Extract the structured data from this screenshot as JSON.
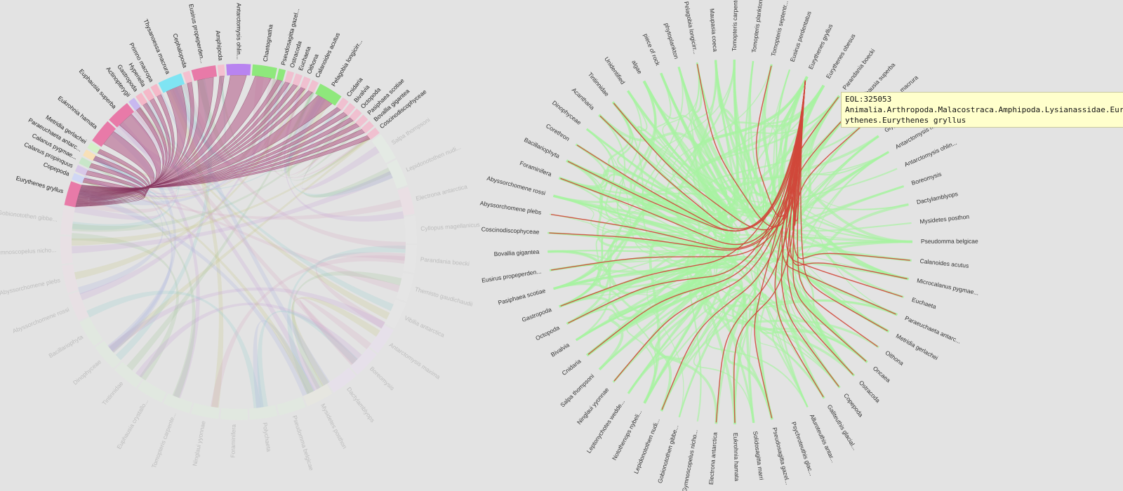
{
  "chord": {
    "highlighted_group": "Eurythenes gryllus",
    "colors": {
      "pink": "#e87aa8",
      "cyan": "#7fe4f3",
      "purple": "#b884f0",
      "green": "#8ee87c",
      "ribbon": "#b25a86"
    },
    "groups_highlight": [
      {
        "label": "Eurythenes gryllus",
        "color": "#e87aa8"
      },
      {
        "label": "Copepoda",
        "color": "#d0d7f5"
      },
      {
        "label": "Calanus propinquus",
        "color": "#d8c8e8"
      },
      {
        "label": "Calanus pygmae...",
        "color": "#c8e6c9"
      },
      {
        "label": "Paraeuchaeta antarc...",
        "color": "#f8e0b8"
      },
      {
        "label": "Metridia gerlachei",
        "color": "#d4f0c8"
      },
      {
        "label": "Eukrohnia hamata",
        "color": "#e87aa8"
      },
      {
        "label": "Euphausia superba",
        "color": "#e87aa8"
      },
      {
        "label": "Actinopterygii",
        "color": "#c8b8f0"
      },
      {
        "label": "Gastropoda",
        "color": "#f4b8c8"
      },
      {
        "label": "Hyperiella",
        "color": "#f4b8c8"
      },
      {
        "label": "Primno macropa",
        "color": "#f4b8c8"
      },
      {
        "label": "Thysanoessa macrura",
        "color": "#7fe4f3"
      },
      {
        "label": "Cephalopoda",
        "color": "#f4c0d0"
      },
      {
        "label": "Eusirus propeperden...",
        "color": "#e87aa8"
      },
      {
        "label": "Amphipoda",
        "color": "#f4c0d0"
      },
      {
        "label": "Antarctomysis ohlin...",
        "color": "#b884f0"
      },
      {
        "label": "Chaetognatha",
        "color": "#8ee87c"
      },
      {
        "label": "Pseudosagitta gazel...",
        "color": "#8ee87c"
      },
      {
        "label": "Ostracoda",
        "color": "#f0c0d0"
      },
      {
        "label": "Euchaeta",
        "color": "#f0c0d0"
      },
      {
        "label": "Oithona",
        "color": "#f0c0d0"
      },
      {
        "label": "Calanoides acutus",
        "color": "#f0c0d0"
      },
      {
        "label": "Pelagobia longicirr...",
        "color": "#8ee87c"
      },
      {
        "label": "Cnidaria",
        "color": "#f0c0d0"
      },
      {
        "label": "Bivalvia",
        "color": "#f0c0d0"
      },
      {
        "label": "Octopoda",
        "color": "#f0c0d0"
      },
      {
        "label": "Pasiphaea scotiae",
        "color": "#f0c0d0"
      },
      {
        "label": "Bovallia gigantea",
        "color": "#f0c0d0"
      },
      {
        "label": "Coscinodiscophyceae",
        "color": "#f0c0d0"
      }
    ],
    "groups_dim": [
      {
        "label": "Salpa thompsoni",
        "color": "#e6f0e6"
      },
      {
        "label": "Lepidonotothen nudi...",
        "color": "#e6f0e6"
      },
      {
        "label": "Electrona antarctica",
        "color": "#f0dde6"
      },
      {
        "label": "Cyllopus magellanicus",
        "color": "#e8e8e8"
      },
      {
        "label": "Parandania boecki",
        "color": "#e8e8e8"
      },
      {
        "label": "Themisto gaudichaudii",
        "color": "#e8e8e8"
      },
      {
        "label": "Vibilia antarctica",
        "color": "#e8e8e8"
      },
      {
        "label": "Antarctomysis maxima",
        "color": "#eadff0"
      },
      {
        "label": "Boreomysis",
        "color": "#eadff0"
      },
      {
        "label": "Dactylamblyops",
        "color": "#eadff0"
      },
      {
        "label": "Mysidetes posthon",
        "color": "#eaeadf"
      },
      {
        "label": "Pseudomma belgicae",
        "color": "#e0ecdf"
      },
      {
        "label": "Polychaeta",
        "color": "#e0ecdf"
      },
      {
        "label": "Foraminifera",
        "color": "#e0ecdf"
      },
      {
        "label": "Ninglaui yyonnae",
        "color": "#e0ecdf"
      },
      {
        "label": "Tomopteris carpente...",
        "color": "#e0ecdf"
      },
      {
        "label": "Euphausia crystallo...",
        "color": "#e0ecdf"
      },
      {
        "label": "Tintinnidae",
        "color": "#e0ecdf"
      },
      {
        "label": "Dinophyceae",
        "color": "#e0ecdf"
      },
      {
        "label": "Bacillariophyta",
        "color": "#e0ecdf"
      },
      {
        "label": "Abyssorchomene rossi",
        "color": "#ecdfe6"
      },
      {
        "label": "Abyssorchomene plebs",
        "color": "#ecdfe6"
      },
      {
        "label": "Gymnoscopelus nicho...",
        "color": "#ecdfe6"
      },
      {
        "label": "Gobionotothen gibbe...",
        "color": "#ecdfe6"
      }
    ]
  },
  "edge_bundle": {
    "colors": {
      "highlight": "#d0473a",
      "bundle": "#a8f2a2"
    },
    "nodes": [
      "Eurythenes gryllus",
      "Eurythenes obesus",
      "Parandania boecki",
      "Euphausia superba",
      "Thysanoessa macrura",
      "Glyptonotus antarct...",
      "Antarctomysis maxima",
      "Antarctomysis ohlin...",
      "Boreomysis",
      "Dactylamblyops",
      "Mysidetes posthon",
      "Pseudomma belgicae",
      "Calanoides acutus",
      "Microcalanus pygmae...",
      "Euchaeta",
      "Paraeuchaeta antarc...",
      "Metridia gerlachei",
      "Oithona",
      "Oncaea",
      "Ostracoda",
      "Copepoda",
      "Galiteuthis glacial...",
      "Alluroteuthis antar...",
      "Psychroteuthis glac...",
      "Pseudosagitta gazel...",
      "Solidosagitta marri",
      "Eukrohnia hamata",
      "Electrona antarctica",
      "Gymnoscopelus nicho...",
      "Gobionotothen gibbe...",
      "Lepidonotothen nudi...",
      "Notothenops nybeli...",
      "Leptonychotes wedde...",
      "Ninglaui yyonnae",
      "Salpa thompsoni",
      "Cnidaria",
      "Bivalvia",
      "Octopoda",
      "Gastropoda",
      "Pasiphaea scotiae",
      "Eusirus propeperden...",
      "Bovallia gigantea",
      "Coscinodiscophyceae",
      "Abyssorchomene plebs",
      "Abyssorchomene rossi",
      "Foraminifera",
      "Bacillariophyta",
      "Corethron",
      "Dinophyceae",
      "Acantharia",
      "Tintinnidae",
      "Unidentified",
      "algae",
      "piece of rock",
      "phytoplankton",
      "Pelagobia longicirr...",
      "Maupasia coeca",
      "Tomopteris carpente...",
      "Tomopteris planktonis",
      "Tomopteris septentr...",
      "Eusirus perdentatus"
    ],
    "highlighted_targets": [
      "Parandania boecki",
      "Euphausia superba",
      "Thysanoessa macrura",
      "Calanoides acutus",
      "Microcalanus pygmae...",
      "Euchaeta",
      "Paraeuchaeta antarc...",
      "Metridia gerlachei",
      "Oithona",
      "Oncaea",
      "Ostracoda",
      "Copepoda",
      "Galiteuthis glacial...",
      "Pseudosagitta gazel...",
      "Eukrohnia hamata",
      "Electrona antarctica",
      "Lepidonotothen nudi...",
      "Ninglaui yyonnae",
      "Cnidaria",
      "Octopoda",
      "Gastropoda",
      "Eusirus propeperden...",
      "Coscinodiscophyceae",
      "Abyssorchomene plebs",
      "Foraminifera",
      "Bacillariophyta",
      "Corethron",
      "Acantharia",
      "Tintinnidae",
      "Pelagobia longicirr...",
      "Tomopteris septentr..."
    ]
  },
  "tooltip": {
    "id": "EOL:325053",
    "taxonomy": "Animalia.Arthropoda.Malacostraca.Amphipoda.Lysianassidae.Eurythenes.Eurythenes gryllus"
  }
}
